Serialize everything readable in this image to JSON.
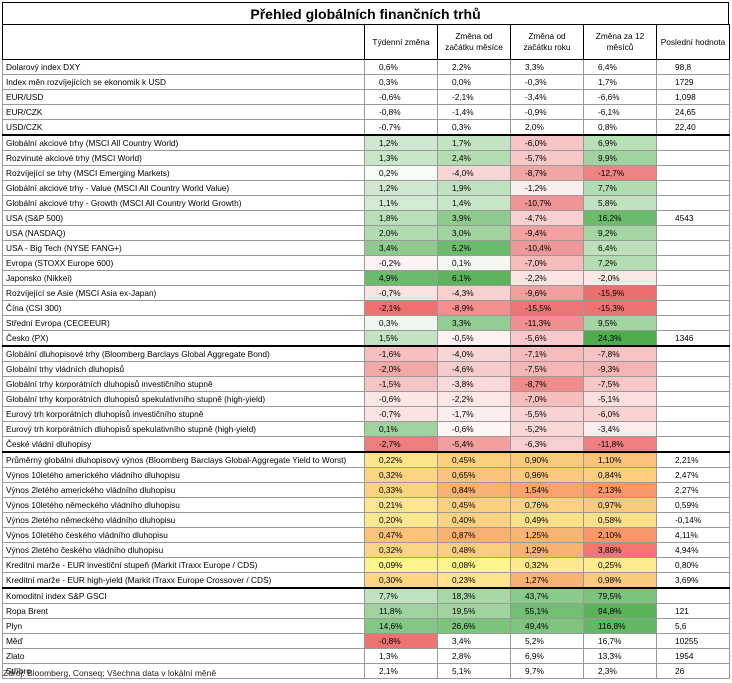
{
  "title": "Přehled globálních finančních trhů",
  "headers": [
    "",
    "Týdenní změna",
    "Změna od začátku měsíce",
    "Změna od začátku roku",
    "Změna za 12 měsíců",
    "Poslední hodnota"
  ],
  "rows": [
    {
      "name": "Dolarový index DXY",
      "v": [
        "0,6%",
        "2,2%",
        "3,3%",
        "6,4%"
      ],
      "last": "98,8",
      "c": [
        "",
        "",
        "",
        ""
      ]
    },
    {
      "name": "Index měn rozvíjejících se ekonomik k USD",
      "v": [
        "0,3%",
        "0,0%",
        "-0,3%",
        "1,7%"
      ],
      "last": "1729",
      "c": [
        "",
        "",
        "",
        ""
      ]
    },
    {
      "name": "EUR/USD",
      "v": [
        "-0,6%",
        "-2,1%",
        "-3,4%",
        "-6,6%"
      ],
      "last": "1,098",
      "c": [
        "",
        "",
        "",
        ""
      ]
    },
    {
      "name": "EUR/CZK",
      "v": [
        "-0,8%",
        "-1,4%",
        "-0,9%",
        "-6,1%"
      ],
      "last": "24,65",
      "c": [
        "",
        "",
        "",
        ""
      ]
    },
    {
      "name": "USD/CZK",
      "v": [
        "-0,7%",
        "0,3%",
        "2,0%",
        "0,8%"
      ],
      "last": "22,40",
      "c": [
        "",
        "",
        "",
        ""
      ]
    },
    {
      "name": "Globální akciové trhy (MSCI All Country World)",
      "v": [
        "1,2%",
        "1,7%",
        "-6,0%",
        "6,9%"
      ],
      "last": "",
      "c": [
        "#cfe8cf",
        "#c3e3c3",
        "#f7c5c5",
        "#b9dfb9"
      ],
      "sep": true
    },
    {
      "name": "Rozvinuté akciové trhy (MSCI World)",
      "v": [
        "1,3%",
        "2,4%",
        "-5,7%",
        "9,9%"
      ],
      "last": "",
      "c": [
        "#c9e6c9",
        "#b3dcb3",
        "#f7c8c8",
        "#9fd29f"
      ]
    },
    {
      "name": "Rozvíjející se trhy (MSCI Emerging Markets)",
      "v": [
        "0,2%",
        "-4,0%",
        "-8,7%",
        "-12,7%"
      ],
      "last": "",
      "c": [
        "#f5fbf5",
        "#f9d6d6",
        "#f2a5a5",
        "#ef8282"
      ]
    },
    {
      "name": "Globální akciové trhy - Value (MSCI All Country World Value)",
      "v": [
        "1,2%",
        "1,9%",
        "-1,2%",
        "7,7%"
      ],
      "last": "",
      "c": [
        "#cfe8cf",
        "#bfe1bf",
        "#fdeeee",
        "#b1dbb1"
      ]
    },
    {
      "name": "Globální akciové trhy - Growth (MSCI All Country World Growth)",
      "v": [
        "1,1%",
        "1,4%",
        "-10,7%",
        "5,8%"
      ],
      "last": "",
      "c": [
        "#d3ead3",
        "#c9e6c9",
        "#f09595",
        "#c1e2c1"
      ]
    },
    {
      "name": "USA (S&P 500)",
      "v": [
        "1,8%",
        "3,9%",
        "-4,7%",
        "16,2%"
      ],
      "last": "4543",
      "c": [
        "#b9dfb9",
        "#8fcb8f",
        "#f9d0d0",
        "#6cbb6c"
      ]
    },
    {
      "name": "USA (NASDAQ)",
      "v": [
        "2,0%",
        "3,0%",
        "-9,4%",
        "9,2%"
      ],
      "last": "",
      "c": [
        "#b1dbb1",
        "#a1d3a1",
        "#f2a0a0",
        "#a5d5a5"
      ]
    },
    {
      "name": "USA - Big Tech (NYSE FANG+)",
      "v": [
        "3,4%",
        "5,2%",
        "-10,4%",
        "6,4%"
      ],
      "last": "",
      "c": [
        "#8fcb8f",
        "#6cbb6c",
        "#f09898",
        "#bbe0bb"
      ]
    },
    {
      "name": "Evropa (STOXX Europe 600)",
      "v": [
        "-0,2%",
        "0,1%",
        "-7,0%",
        "7,2%"
      ],
      "last": "",
      "c": [
        "#fdf3f3",
        "#f1f9f1",
        "#f6bcbc",
        "#b5ddb5"
      ]
    },
    {
      "name": "Japonsko (Nikkei)",
      "v": [
        "4,9%",
        "6,1%",
        "-2,2%",
        "-2,0%"
      ],
      "last": "",
      "c": [
        "#6cbb6c",
        "#5eb45e",
        "#fce4e4",
        "#fde8e8"
      ]
    },
    {
      "name": "Rozvíjející se Asie (MSCI Asia ex-Japan)",
      "v": [
        "-0,7%",
        "-4,3%",
        "-9,6%",
        "-15,9%"
      ],
      "last": "",
      "c": [
        "#fbe3e3",
        "#f8d0d0",
        "#f29e9e",
        "#ec6f6f"
      ]
    },
    {
      "name": "Čína (CSI 300)",
      "v": [
        "-2,1%",
        "-8,9%",
        "-15,5%",
        "-15,3%"
      ],
      "last": "",
      "c": [
        "#f06f6f",
        "#f29090",
        "#ed7575",
        "#ed7373"
      ]
    },
    {
      "name": "Střední Evropa (CECEEUR)",
      "v": [
        "0,3%",
        "3,3%",
        "-11,3%",
        "9,5%"
      ],
      "last": "",
      "c": [
        "#eef8ee",
        "#93cd93",
        "#ef9090",
        "#a3d4a3"
      ]
    },
    {
      "name": "Česko (PX)",
      "v": [
        "1,5%",
        "-0,5%",
        "-5,6%",
        "24,3%"
      ],
      "last": "1346",
      "c": [
        "#c3e3c3",
        "#fdf1f1",
        "#f8c9c9",
        "#4eac4e"
      ]
    },
    {
      "name": "Globální dluhopisové trhy (Bloomberg Barclays Global Aggregate Bond)",
      "v": [
        "-1,6%",
        "-4,0%",
        "-7,1%",
        "-7,8%"
      ],
      "last": "",
      "c": [
        "#f6c0c0",
        "#f9d6d6",
        "#f6bcbc",
        "#f7c3c3"
      ],
      "sep": true
    },
    {
      "name": "Globální trhy vládních dluhopisů",
      "v": [
        "-2,0%",
        "-4,6%",
        "-7,5%",
        "-9,3%"
      ],
      "last": "",
      "c": [
        "#f3a8a8",
        "#f8cbcb",
        "#f5b6b6",
        "#f5b4b4"
      ]
    },
    {
      "name": "Globální trhy korporátních dluhopisů investičního stupně",
      "v": [
        "-1,5%",
        "-3,8%",
        "-8,7%",
        "-7,5%"
      ],
      "last": "",
      "c": [
        "#f6c4c4",
        "#f9d9d9",
        "#f08c8c",
        "#f7c6c6"
      ]
    },
    {
      "name": "Globální trhy korporátních dluhopisů spekulativního stupně (high-yield)",
      "v": [
        "-0,6%",
        "-2,2%",
        "-7,0%",
        "-5,1%"
      ],
      "last": "",
      "c": [
        "#fbe6e6",
        "#fce6e6",
        "#f6bdbd",
        "#fbdede"
      ]
    },
    {
      "name": "Eurový trh korporátních dluhopisů investičního stupně",
      "v": [
        "-0,7%",
        "-1,7%",
        "-5,5%",
        "-6,0%"
      ],
      "last": "",
      "c": [
        "#fbe3e3",
        "#fdeeee",
        "#f9d3d3",
        "#f9d3d3"
      ]
    },
    {
      "name": "Eurový trh korporátních dluhopisů spekulativního stupně (high-yield)",
      "v": [
        "0,1%",
        "-0,6%",
        "-5,2%",
        "-3,4%"
      ],
      "last": "",
      "c": [
        "#9fd29f",
        "#fef5f5",
        "#fad8d8",
        "#fdecec"
      ]
    },
    {
      "name": "České vládní dluhopisy",
      "v": [
        "-2,7%",
        "-5,4%",
        "-6,3%",
        "-11,8%"
      ],
      "last": "",
      "c": [
        "#ee7d7d",
        "#f39f9f",
        "#f8cfcf",
        "#ef8080"
      ]
    },
    {
      "name": "Průměrný globální dluhopisový výnos (Bloomberg Barclays Global-Aggregate Yield to Worst)",
      "v": [
        "0,22%",
        "0,45%",
        "0,90%",
        "1,10%"
      ],
      "last": "2,21%",
      "c": [
        "#fde58e",
        "#fbd07f",
        "#fbcb7d",
        "#fac27a"
      ],
      "sep": true
    },
    {
      "name": "Výnos 10letého amerického vládního dluhopisu",
      "v": [
        "0,32%",
        "0,65%",
        "0,96%",
        "0,84%"
      ],
      "last": "2,47%",
      "c": [
        "#fbd582",
        "#fac27a",
        "#fbc87c",
        "#fccf7f"
      ]
    },
    {
      "name": "Výnos 2letého amerického vládního dluhopisu",
      "v": [
        "0,33%",
        "0,84%",
        "1,54%",
        "2,13%"
      ],
      "last": "2,27%",
      "c": [
        "#fbd481",
        "#f8b273",
        "#f7a46e",
        "#f7976b"
      ]
    },
    {
      "name": "Výnos 10letého německého vládního dluhopisu",
      "v": [
        "0,21%",
        "0,45%",
        "0,76%",
        "0,97%"
      ],
      "last": "0,59%",
      "c": [
        "#fde68f",
        "#fbd07f",
        "#fcd182",
        "#fbcb7d"
      ]
    },
    {
      "name": "Výnos 2letého německého vládního dluhopisu",
      "v": [
        "0,20%",
        "0,40%",
        "0,49%",
        "0,58%"
      ],
      "last": "-0,14%",
      "c": [
        "#fde78f",
        "#fcd382",
        "#fde189",
        "#fde08a"
      ]
    },
    {
      "name": "Výnos 10letého českého vládního dluhopisu",
      "v": [
        "0,47%",
        "0,87%",
        "1,25%",
        "2,10%"
      ],
      "last": "4,11%",
      "c": [
        "#fac27a",
        "#f8b073",
        "#f9b573",
        "#f7986b"
      ]
    },
    {
      "name": "Výnos 2letého českého vládního dluhopisu",
      "v": [
        "0,32%",
        "0,48%",
        "1,29%",
        "3,88%"
      ],
      "last": "4,94%",
      "c": [
        "#fbd582",
        "#fbcd7e",
        "#f8b373",
        "#f4766d"
      ]
    },
    {
      "name": "Kreditní marže - EUR investiční stupeň (Markit iTraxx Europe / CDS)",
      "v": [
        "0,09%",
        "0,08%",
        "0,32%",
        "0,25%"
      ],
      "last": "0,80%",
      "c": [
        "#fef38d",
        "#fef48d",
        "#fde88f",
        "#feea8f"
      ]
    },
    {
      "name": "Kreditní marže - EUR high-yield (Markit iTraxx Europe Crossover / CDS)",
      "v": [
        "0,30%",
        "0,23%",
        "1,27%",
        "0,98%"
      ],
      "last": "3,69%",
      "c": [
        "#fbd683",
        "#fde38b",
        "#f8b373",
        "#fbcb7d"
      ]
    },
    {
      "name": "Komoditní index S&P GSCI",
      "v": [
        "7,7%",
        "18,3%",
        "43,7%",
        "79,5%"
      ],
      "last": "",
      "c": [
        "#c1e2c1",
        "#a7d6a7",
        "#8cc98c",
        "#7dc27d"
      ],
      "sep": true
    },
    {
      "name": "Ropa Brent",
      "v": [
        "11,8%",
        "19,5%",
        "55,1%",
        "94,8%"
      ],
      "last": "121",
      "c": [
        "#9fd29f",
        "#a1d3a1",
        "#73be73",
        "#5ab25a"
      ]
    },
    {
      "name": "Plyn",
      "v": [
        "14,6%",
        "26,6%",
        "49,4%",
        "116,8%"
      ],
      "last": "5,6",
      "c": [
        "#84c684",
        "#7dc27d",
        "#7fc37f",
        "#63b663"
      ]
    },
    {
      "name": "Měď",
      "v": [
        "-0,8%",
        "3,4%",
        "5,2%",
        "16,7%"
      ],
      "last": "10255",
      "c": [
        "#ef7272",
        "#ffffff",
        "#ffffff",
        "#ffffff"
      ]
    },
    {
      "name": "Zlato",
      "v": [
        "1,3%",
        "2,8%",
        "6,9%",
        "13,3%"
      ],
      "last": "1954",
      "c": [
        "#ffffff",
        "#ffffff",
        "#ffffff",
        "#ffffff"
      ]
    },
    {
      "name": "Stříbro",
      "v": [
        "2,1%",
        "5,1%",
        "9,7%",
        "2,3%"
      ],
      "last": "26",
      "c": [
        "#ffffff",
        "#ffffff",
        "#ffffff",
        "#ffffff"
      ]
    }
  ],
  "note": "Zdroj: Bloomberg, Conseq; Všechna data v lokální měně"
}
